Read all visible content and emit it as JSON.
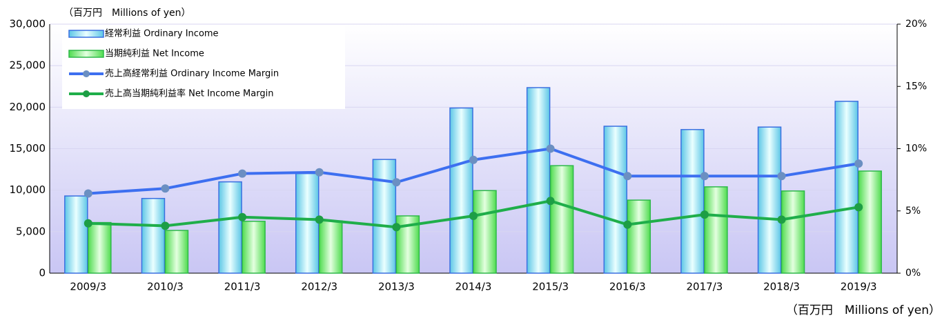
{
  "chart_data": {
    "type": "bar-line",
    "unit_label_top": "（百万円　Millions of yen）",
    "unit_label_bottom": "（百万円　Millions of yen）",
    "categories": [
      "2009/3",
      "2010/3",
      "2011/3",
      "2012/3",
      "2013/3",
      "2014/3",
      "2015/3",
      "2016/3",
      "2017/3",
      "2018/3",
      "2019/3"
    ],
    "series": [
      {
        "name": "経常利益 Ordinary Income",
        "type": "bar",
        "color": "#8fe3f2",
        "border": "#3a6fe0",
        "values": [
          9300,
          9000,
          11000,
          12000,
          13700,
          19900,
          22350,
          17700,
          17300,
          17600,
          20700
        ]
      },
      {
        "name": "当期純利益 Net Income",
        "type": "bar",
        "color": "#8ef58a",
        "border": "#2eb84a",
        "values": [
          6100,
          5150,
          6250,
          6300,
          6900,
          9950,
          12950,
          8800,
          10400,
          9900,
          12300
        ]
      },
      {
        "name": "売上高経常利益 Ordinary Income Margin",
        "type": "line",
        "axis": "y2",
        "color": "#3d6ff0",
        "marker": "#6b8fc2",
        "values": [
          6.4,
          6.8,
          8.0,
          8.1,
          7.3,
          9.1,
          10.0,
          7.8,
          7.8,
          7.8,
          8.8
        ]
      },
      {
        "name": "売上高当期純利益率 Net Income Margin",
        "type": "line",
        "axis": "y2",
        "color": "#1fae4a",
        "marker": "#1d9e45",
        "values": [
          4.0,
          3.8,
          4.5,
          4.3,
          3.7,
          4.6,
          5.8,
          3.9,
          4.7,
          4.3,
          5.3
        ]
      }
    ],
    "ylim": [
      0,
      30000
    ],
    "yticks": [
      {
        "value": 0,
        "label": "0"
      },
      {
        "value": 5000,
        "label": "5,000"
      },
      {
        "value": 10000,
        "label": "10,000"
      },
      {
        "value": 15000,
        "label": "15,000"
      },
      {
        "value": 20000,
        "label": "20,000"
      },
      {
        "value": 25000,
        "label": "25,000"
      },
      {
        "value": 30000,
        "label": "30,000"
      }
    ],
    "y2lim": [
      0,
      20
    ],
    "y2ticks": [
      {
        "value": 0,
        "label": "0%"
      },
      {
        "value": 5,
        "label": "5%"
      },
      {
        "value": 10,
        "label": "10%"
      },
      {
        "value": 15,
        "label": "15%"
      },
      {
        "value": 20,
        "label": "20%"
      }
    ],
    "grid": true
  }
}
